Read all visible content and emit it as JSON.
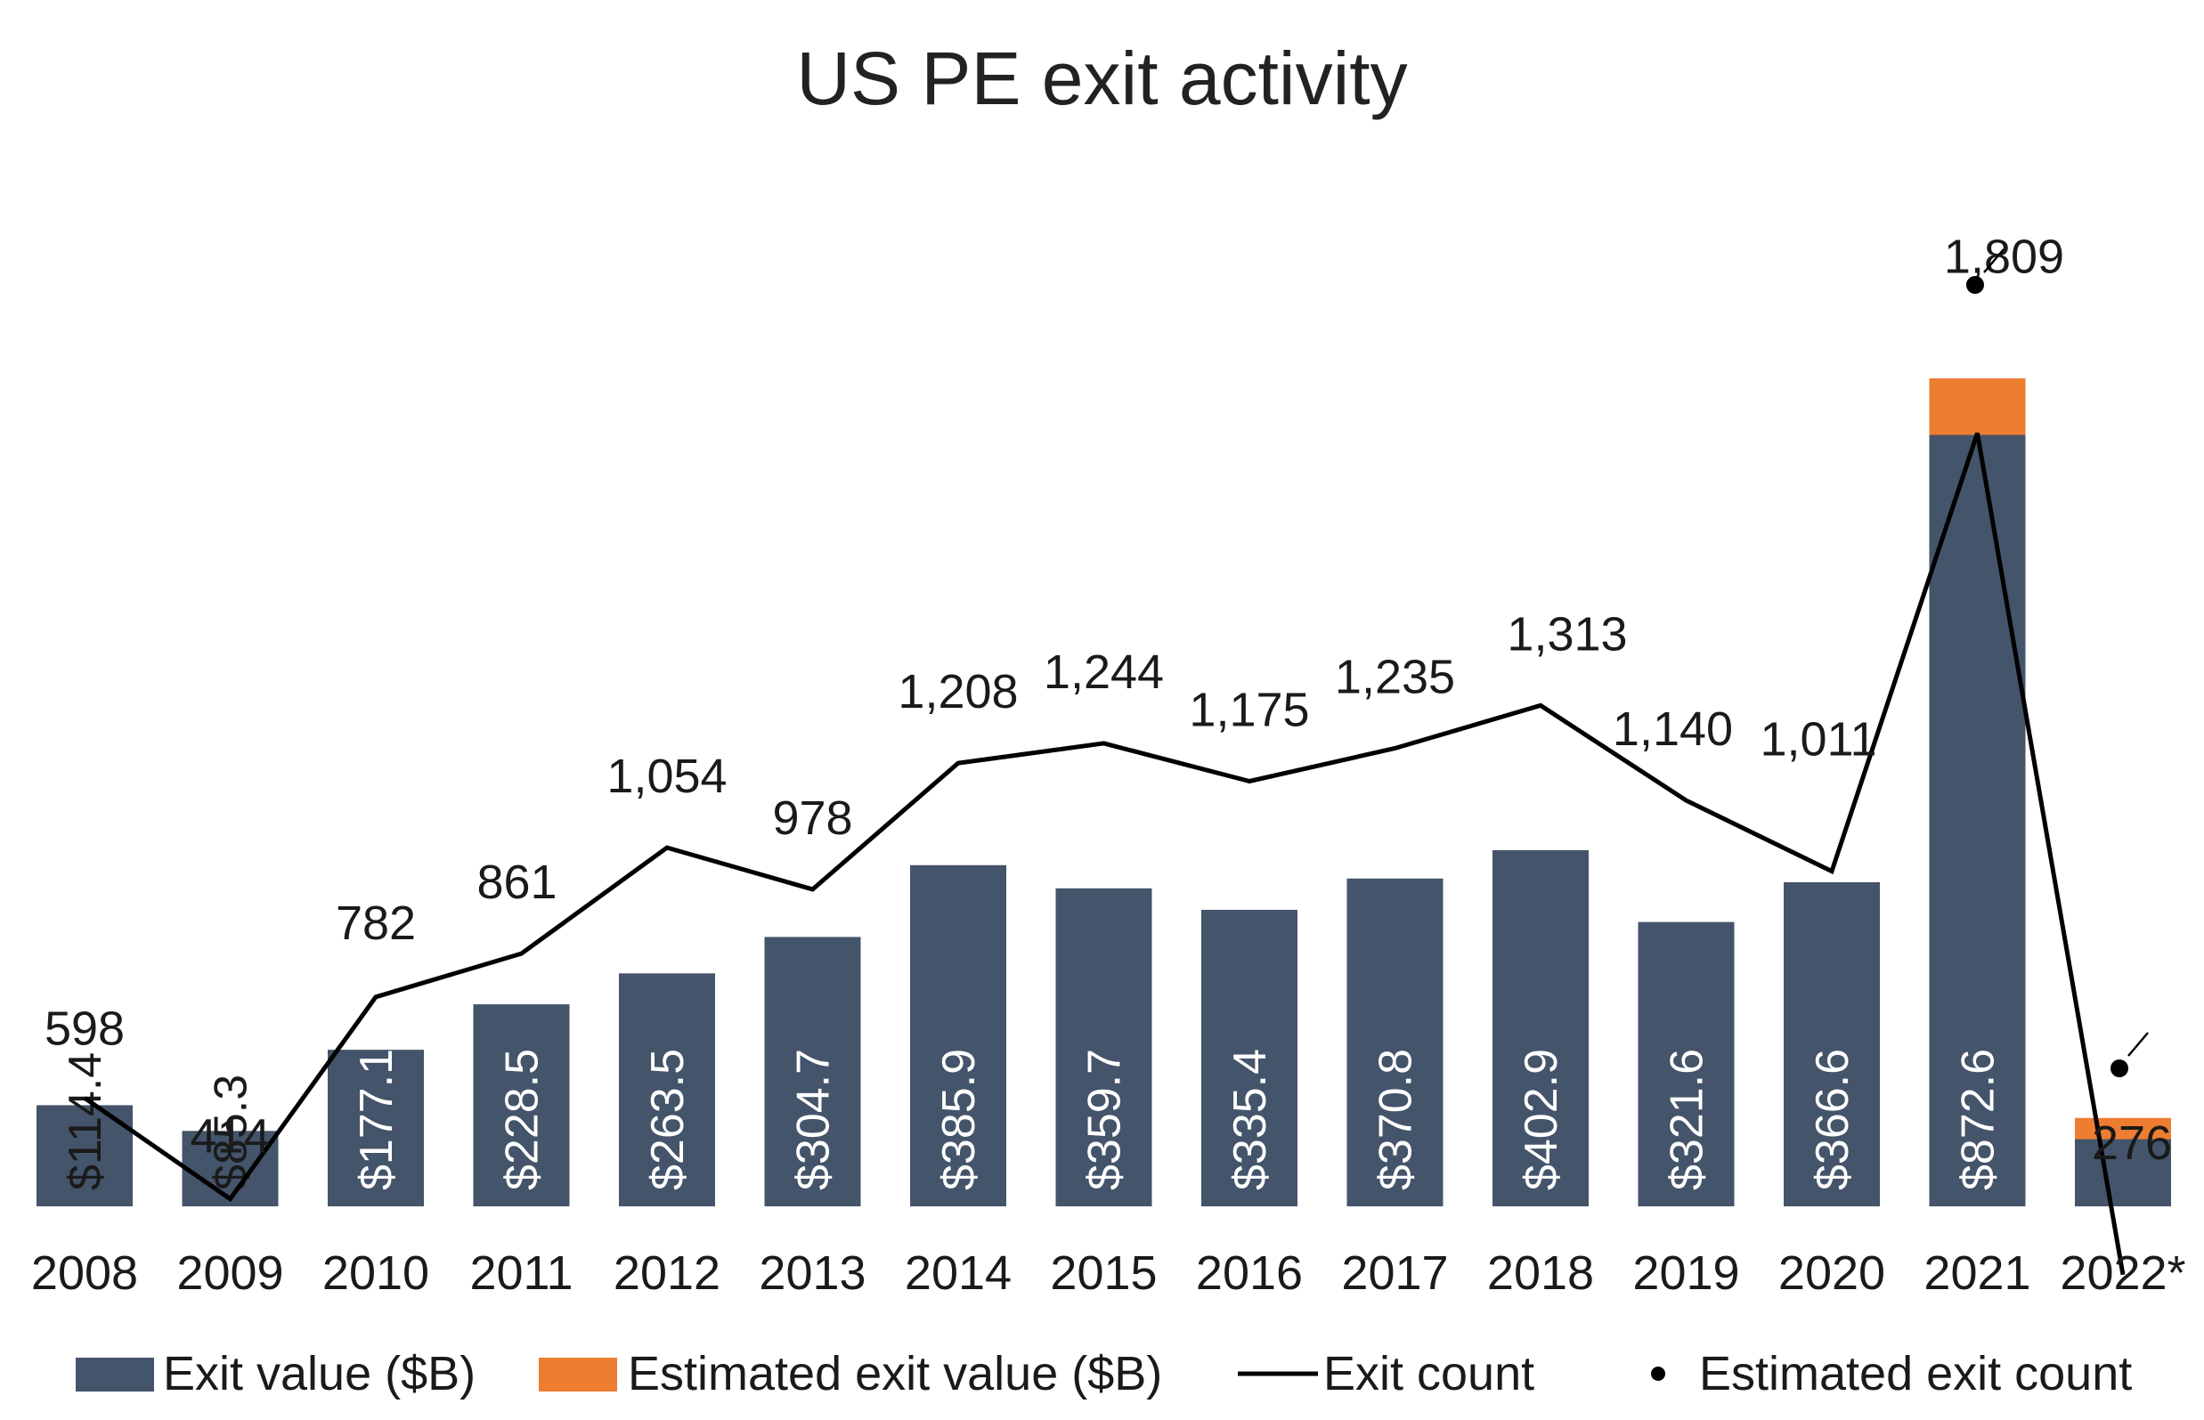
{
  "chart_data": {
    "type": "bar",
    "title": "US PE exit activity",
    "categories": [
      "2008",
      "2009",
      "2010",
      "2011",
      "2012",
      "2013",
      "2014",
      "2015",
      "2016",
      "2017",
      "2018",
      "2019",
      "2020",
      "2021",
      "2022*"
    ],
    "series": [
      {
        "name": "Exit value ($B)",
        "kind": "bar",
        "color": "#44546a",
        "values": [
          114.4,
          85.3,
          177.1,
          228.5,
          263.5,
          304.7,
          385.9,
          359.7,
          335.4,
          370.8,
          402.9,
          321.6,
          366.6,
          872.6,
          76
        ],
        "labels": [
          "$114.4",
          "$85.3",
          "$177.1",
          "$228.5",
          "$263.5",
          "$304.7",
          "$385.9",
          "$359.7",
          "$335.4",
          "$370.8",
          "$402.9",
          "$321.6",
          "$366.6",
          "$872.6",
          ""
        ]
      },
      {
        "name": "Estimated exit value ($B)",
        "kind": "bar-stacked",
        "color": "#ed7d31",
        "values": [
          0,
          0,
          0,
          0,
          0,
          0,
          0,
          0,
          0,
          0,
          0,
          0,
          0,
          64,
          24
        ]
      },
      {
        "name": "Exit count",
        "kind": "line",
        "color": "#000000",
        "values": [
          598,
          414,
          782,
          861,
          1054,
          978,
          1208,
          1244,
          1175,
          1235,
          1313,
          1140,
          1011,
          1809,
          276
        ],
        "labels": [
          "598",
          "414",
          "782",
          "861",
          "1,054",
          "978",
          "1,208",
          "1,244",
          "1,175",
          "1,235",
          "1,313",
          "1,140",
          "1,011",
          "1,809",
          "276"
        ]
      },
      {
        "name": "Estimated exit count",
        "kind": "marker",
        "color": "#000000"
      }
    ],
    "legend_position": "bottom",
    "grid": false
  }
}
